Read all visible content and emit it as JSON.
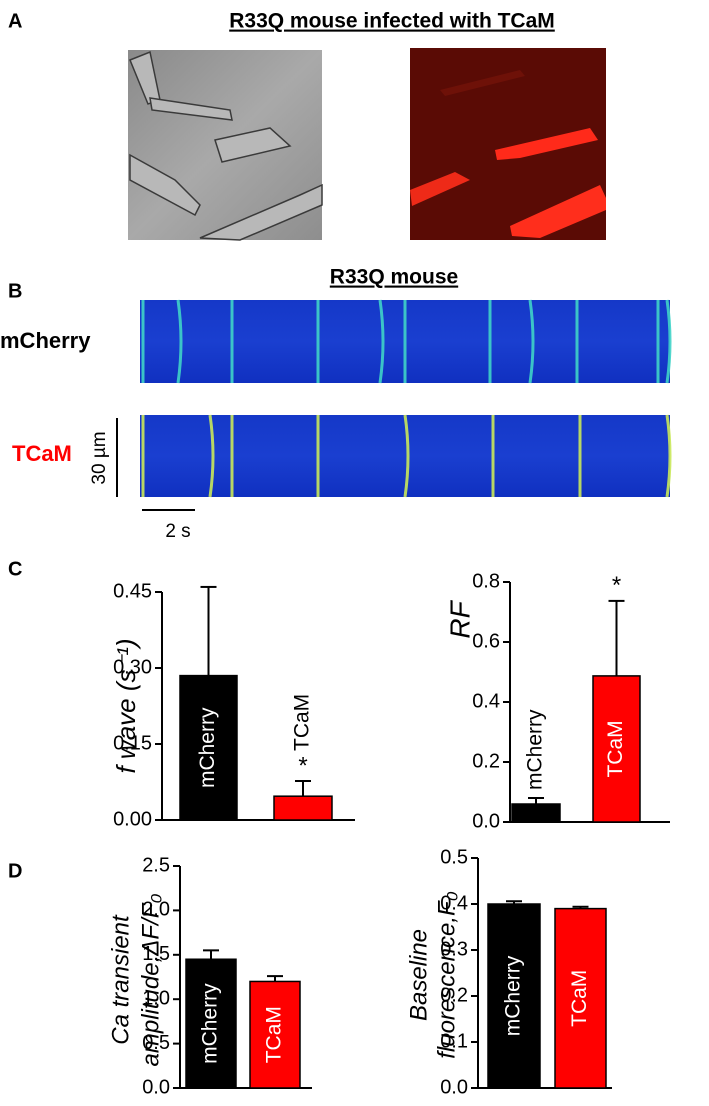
{
  "panels": {
    "A": {
      "label": "A",
      "title": "R33Q mouse infected with TCaM"
    },
    "B": {
      "label": "B",
      "title": "R33Q mouse",
      "rows": [
        "mCherry",
        "TCaM"
      ],
      "scale_y": "30 µm",
      "scale_x": "2 s"
    },
    "C": {
      "label": "C"
    },
    "D": {
      "label": "D"
    }
  },
  "chart_data": [
    {
      "type": "bar",
      "ylabel": [
        "f wave (s⁻¹)"
      ],
      "categories": [
        "mCherry",
        "TCaM"
      ],
      "colors": [
        "#000000",
        "#ff0000"
      ],
      "values": [
        0.285,
        0.047
      ],
      "errors": [
        0.175,
        0.03
      ],
      "annotations": [
        null,
        "*"
      ],
      "ylim": [
        0,
        0.45
      ],
      "yticks": [
        {
          "value": 0,
          "label": "0.00"
        },
        0.15,
        {
          "value": 0.3,
          "label": "0.30"
        },
        0.45
      ]
    },
    {
      "type": "bar",
      "ylabel": [
        "RF"
      ],
      "categories": [
        "mCherry",
        "TCaM"
      ],
      "colors": [
        "#000000",
        "#ff0000"
      ],
      "values": [
        0.06,
        0.487
      ],
      "errors": [
        0.02,
        0.25
      ],
      "annotations": [
        null,
        "*"
      ],
      "ylim": [
        0,
        0.8
      ],
      "yticks": [
        {
          "value": 0,
          "label": "0.0"
        },
        0.2,
        0.4,
        0.6,
        0.8
      ]
    },
    {
      "type": "bar",
      "ylabel": [
        "Ca transient",
        "amplitude,ΔF/F₀"
      ],
      "categories": [
        "mCherry",
        "TCaM"
      ],
      "colors": [
        "#000000",
        "#ff0000"
      ],
      "values": [
        1.45,
        1.2
      ],
      "errors": [
        0.1,
        0.06
      ],
      "annotations": [
        null,
        null
      ],
      "ylim": [
        0,
        2.5
      ],
      "yticks": [
        {
          "value": 0,
          "label": "0.0"
        },
        0.5,
        {
          "value": 1,
          "label": "1.0"
        },
        1.5,
        {
          "value": 2,
          "label": "2.0"
        },
        2.5
      ]
    },
    {
      "type": "bar",
      "ylabel": [
        "Baseline",
        "fluorescence,F₀"
      ],
      "categories": [
        "mCherry",
        "TCaM"
      ],
      "colors": [
        "#000000",
        "#ff0000"
      ],
      "values": [
        0.4,
        0.39
      ],
      "errors": [
        0.006,
        0.004
      ],
      "annotations": [
        null,
        null
      ],
      "ylim": [
        0,
        0.5
      ],
      "yticks": [
        {
          "value": 0,
          "label": "0.0"
        },
        0.1,
        0.2,
        0.3,
        0.4,
        0.5
      ]
    }
  ]
}
